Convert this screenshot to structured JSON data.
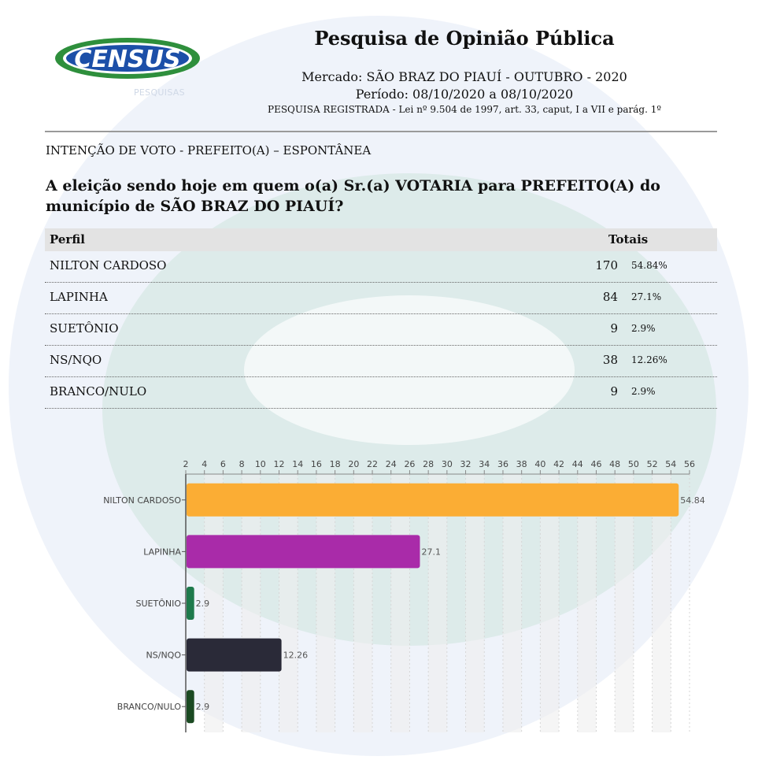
{
  "logo": {
    "text": "CENSUS",
    "sub": "PESQUISAS"
  },
  "header": {
    "title": "Pesquisa de Opinião Pública",
    "market": "Mercado: SÃO BRAZ DO PIAUÍ - OUTUBRO - 2020",
    "period": "Período: 08/10/2020 a 08/10/2020",
    "registration": "PESQUISA REGISTRADA - Lei nº 9.504 de 1997, art. 33, caput, I a VII e parág. 1º"
  },
  "section_title": "INTENÇÃO DE VOTO - PREFEITO(A) – ESPONTÂNEA",
  "question": "A eleição sendo hoje em quem o(a) Sr.(a) VOTARIA para PREFEITO(A) do município de SÃO BRAZ DO PIAUÍ?",
  "table": {
    "headers": {
      "perfil": "Perfil",
      "totais": "Totais"
    },
    "rows": [
      {
        "name": "NILTON CARDOSO",
        "count": "170",
        "pct": "54.84%"
      },
      {
        "name": "LAPINHA",
        "count": "84",
        "pct": "27.1%"
      },
      {
        "name": "SUETÔNIO",
        "count": "9",
        "pct": "2.9%"
      },
      {
        "name": "NS/NQO",
        "count": "38",
        "pct": "12.26%"
      },
      {
        "name": "BRANCO/NULO",
        "count": "9",
        "pct": "2.9%"
      }
    ]
  },
  "chart_data": {
    "type": "bar",
    "orientation": "horizontal",
    "title": "",
    "xlabel": "",
    "ylabel": "",
    "categories": [
      "NILTON CARDOSO",
      "LAPINHA",
      "SUETÔNIO",
      "NS/NQO",
      "BRANCO/NULO"
    ],
    "values": [
      54.84,
      27.1,
      2.9,
      12.26,
      2.9
    ],
    "value_labels": [
      "54.84",
      "27.1",
      "2.9",
      "12.26",
      "2.9"
    ],
    "colors": [
      "#fbad34",
      "#a92ba9",
      "#1e7a4c",
      "#2a2a38",
      "#1b4a22"
    ],
    "xlim": [
      2,
      56
    ],
    "x_ticks": [
      2,
      4,
      6,
      8,
      10,
      12,
      14,
      16,
      18,
      20,
      22,
      24,
      26,
      28,
      30,
      32,
      34,
      36,
      38,
      40,
      42,
      44,
      46,
      48,
      50,
      52,
      54,
      56
    ],
    "tick_position": "top",
    "grid": true
  },
  "colors": {
    "watermark_blue": "#1e5bb8",
    "watermark_green": "#2a9a4a",
    "header_band": "#e3e3e3",
    "logo_blue": "#1c4fa8",
    "logo_green": "#2e8f3c"
  }
}
